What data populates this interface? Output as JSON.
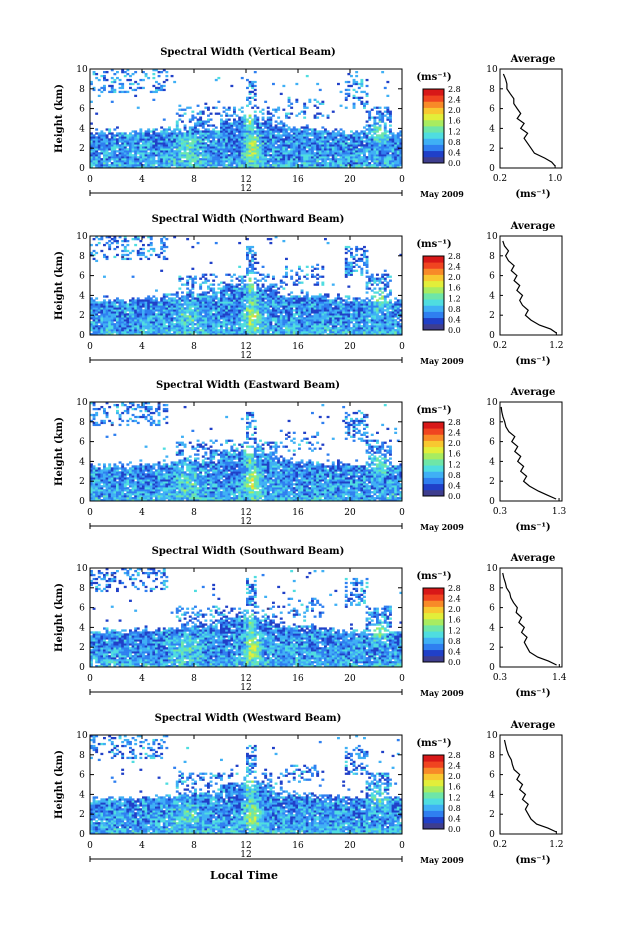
{
  "figure": {
    "xlabel": "Local Time",
    "colorbar_unit": "(ms⁻¹)",
    "avg_title": "Average",
    "avg_xlabel": "(ms⁻¹)",
    "date_label": "May 2009"
  },
  "chart_data": [
    {
      "type": "heatmap",
      "title": "Spectral Width (Vertical Beam)",
      "ylabel": "Height (km)",
      "xticks": [
        "0",
        "4",
        "8",
        "12",
        "16",
        "20",
        "0"
      ],
      "day_marker": "12",
      "yticks": [
        "0",
        "2",
        "4",
        "6",
        "8",
        "10"
      ],
      "ylim": [
        0,
        10
      ],
      "xlim": [
        0,
        24
      ],
      "colorbar_ticks": [
        "0.0",
        "0.4",
        "0.8",
        "1.2",
        "1.6",
        "2.0",
        "2.4",
        "2.8"
      ],
      "colorbar_range": [
        0,
        2.8
      ],
      "colors": [
        "#3e3d8e",
        "#2040c8",
        "#2f7ff0",
        "#3fb0f5",
        "#4fdde0",
        "#6ee6a8",
        "#a8ec60",
        "#e2ee3a",
        "#f8c830",
        "#f88a28",
        "#f04420",
        "#d81818"
      ],
      "average_profile": {
        "xticks": [
          "0.2",
          "1.0"
        ],
        "xlim": [
          0.2,
          1.1
        ],
        "height": [
          0.2,
          0.6,
          1.0,
          1.5,
          2.0,
          2.5,
          3.0,
          3.5,
          4.0,
          4.5,
          5.0,
          5.5,
          6.0,
          6.5,
          7.0,
          7.5,
          8.0,
          8.5,
          9.0,
          9.5
        ],
        "width": [
          1.0,
          0.95,
          0.85,
          0.7,
          0.65,
          0.6,
          0.55,
          0.6,
          0.5,
          0.55,
          0.45,
          0.5,
          0.45,
          0.4,
          0.4,
          0.35,
          0.3,
          0.3,
          0.28,
          0.25
        ]
      }
    },
    {
      "type": "heatmap",
      "title": "Spectral Width (Northward Beam)",
      "ylabel": "Height (km)",
      "xticks": [
        "0",
        "4",
        "8",
        "12",
        "16",
        "20",
        "0"
      ],
      "day_marker": "12",
      "yticks": [
        "0",
        "2",
        "4",
        "6",
        "8",
        "10"
      ],
      "ylim": [
        0,
        10
      ],
      "xlim": [
        0,
        24
      ],
      "colorbar_ticks": [
        "0.0",
        "0.4",
        "0.8",
        "1.2",
        "1.6",
        "2.0",
        "2.4",
        "2.8"
      ],
      "colorbar_range": [
        0,
        2.8
      ],
      "colors": [
        "#3e3d8e",
        "#2040c8",
        "#2f7ff0",
        "#3fb0f5",
        "#4fdde0",
        "#6ee6a8",
        "#a8ec60",
        "#e2ee3a",
        "#f8c830",
        "#f88a28",
        "#f04420",
        "#d81818"
      ],
      "average_profile": {
        "xticks": [
          "0.2",
          "1.2"
        ],
        "xlim": [
          0.2,
          1.3
        ],
        "height": [
          0.2,
          0.6,
          1.0,
          1.5,
          2.0,
          2.5,
          3.0,
          3.5,
          4.0,
          4.5,
          5.0,
          5.5,
          6.0,
          6.5,
          7.0,
          7.5,
          8.0,
          8.5,
          9.0,
          9.5
        ],
        "width": [
          1.2,
          1.1,
          0.9,
          0.75,
          0.65,
          0.7,
          0.6,
          0.55,
          0.6,
          0.5,
          0.55,
          0.45,
          0.5,
          0.4,
          0.45,
          0.35,
          0.3,
          0.35,
          0.28,
          0.25
        ]
      }
    },
    {
      "type": "heatmap",
      "title": "Spectral Width (Eastward Beam)",
      "ylabel": "Height (km)",
      "xticks": [
        "0",
        "4",
        "8",
        "12",
        "16",
        "20",
        "0"
      ],
      "day_marker": "12",
      "yticks": [
        "0",
        "2",
        "4",
        "6",
        "8",
        "10"
      ],
      "ylim": [
        0,
        10
      ],
      "xlim": [
        0,
        24
      ],
      "colorbar_ticks": [
        "0.0",
        "0.4",
        "0.8",
        "1.2",
        "1.6",
        "2.0",
        "2.4",
        "2.8"
      ],
      "colorbar_range": [
        0,
        2.8
      ],
      "colors": [
        "#3e3d8e",
        "#2040c8",
        "#2f7ff0",
        "#3fb0f5",
        "#4fdde0",
        "#6ee6a8",
        "#a8ec60",
        "#e2ee3a",
        "#f8c830",
        "#f88a28",
        "#f04420",
        "#d81818"
      ],
      "average_profile": {
        "xticks": [
          "0.3",
          "1.3"
        ],
        "xlim": [
          0.3,
          1.35
        ],
        "height": [
          0.2,
          0.6,
          1.0,
          1.5,
          2.0,
          2.5,
          3.0,
          3.5,
          4.0,
          4.5,
          5.0,
          5.5,
          6.0,
          6.5,
          7.0,
          7.5,
          8.0,
          8.5,
          9.0,
          9.5
        ],
        "width": [
          1.25,
          1.1,
          0.95,
          0.8,
          0.7,
          0.75,
          0.65,
          0.7,
          0.6,
          0.65,
          0.55,
          0.6,
          0.5,
          0.55,
          0.45,
          0.4,
          0.38,
          0.35,
          0.33,
          0.32
        ]
      }
    },
    {
      "type": "heatmap",
      "title": "Spectral Width (Southward Beam)",
      "ylabel": "Height (km)",
      "xticks": [
        "0",
        "4",
        "8",
        "12",
        "16",
        "20",
        "0"
      ],
      "day_marker": "12",
      "yticks": [
        "0",
        "2",
        "4",
        "6",
        "8",
        "10"
      ],
      "ylim": [
        0,
        10
      ],
      "xlim": [
        0,
        24
      ],
      "colorbar_ticks": [
        "0.0",
        "0.4",
        "0.8",
        "1.2",
        "1.6",
        "2.0",
        "2.4",
        "2.8"
      ],
      "colorbar_range": [
        0,
        2.8
      ],
      "colors": [
        "#3e3d8e",
        "#2040c8",
        "#2f7ff0",
        "#3fb0f5",
        "#4fdde0",
        "#6ee6a8",
        "#a8ec60",
        "#e2ee3a",
        "#f8c830",
        "#f88a28",
        "#f04420",
        "#d81818"
      ],
      "average_profile": {
        "xticks": [
          "0.3",
          "1.4"
        ],
        "xlim": [
          0.3,
          1.45
        ],
        "height": [
          0.2,
          0.6,
          1.0,
          1.5,
          2.0,
          2.5,
          3.0,
          3.5,
          4.0,
          4.5,
          5.0,
          5.5,
          6.0,
          6.5,
          7.0,
          7.5,
          8.0,
          8.5,
          9.0,
          9.5
        ],
        "width": [
          1.35,
          1.2,
          1.0,
          0.85,
          0.8,
          0.75,
          0.8,
          0.7,
          0.75,
          0.65,
          0.7,
          0.6,
          0.62,
          0.55,
          0.5,
          0.48,
          0.42,
          0.4,
          0.37,
          0.35
        ]
      }
    },
    {
      "type": "heatmap",
      "title": "Spectral Width (Westward Beam)",
      "ylabel": "Height (km)",
      "xticks": [
        "0",
        "4",
        "8",
        "12",
        "16",
        "20",
        "0"
      ],
      "day_marker": "12",
      "yticks": [
        "0",
        "2",
        "4",
        "6",
        "8",
        "10"
      ],
      "ylim": [
        0,
        10
      ],
      "xlim": [
        0,
        24
      ],
      "colorbar_ticks": [
        "0.0",
        "0.4",
        "0.8",
        "1.2",
        "1.6",
        "2.0",
        "2.4",
        "2.8"
      ],
      "colorbar_range": [
        0,
        2.8
      ],
      "colors": [
        "#3e3d8e",
        "#2040c8",
        "#2f7ff0",
        "#3fb0f5",
        "#4fdde0",
        "#6ee6a8",
        "#a8ec60",
        "#e2ee3a",
        "#f8c830",
        "#f88a28",
        "#f04420",
        "#d81818"
      ],
      "average_profile": {
        "xticks": [
          "0.2",
          "1.2"
        ],
        "xlim": [
          0.2,
          1.3
        ],
        "height": [
          0.2,
          0.6,
          1.0,
          1.5,
          2.0,
          2.5,
          3.0,
          3.5,
          4.0,
          4.5,
          5.0,
          5.5,
          6.0,
          6.5,
          7.0,
          7.5,
          8.0,
          8.5,
          9.0,
          9.5
        ],
        "width": [
          1.2,
          1.05,
          0.85,
          0.75,
          0.7,
          0.65,
          0.7,
          0.6,
          0.65,
          0.55,
          0.6,
          0.5,
          0.55,
          0.45,
          0.42,
          0.4,
          0.35,
          0.32,
          0.3,
          0.28
        ]
      }
    }
  ]
}
